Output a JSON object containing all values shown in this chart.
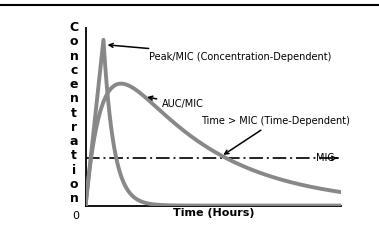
{
  "xlabel": "Time (Hours)",
  "ylabel_letters": [
    "C",
    "o",
    "n",
    "c",
    "e",
    "n",
    "t",
    "r",
    "a",
    "t",
    "i",
    "o",
    "n"
  ],
  "background_color": "#ffffff",
  "mic_level": 0.28,
  "curve_color": "#888888",
  "mic_color": "#222222",
  "annotation_peak": "Peak/MIC (Concentration-Dependent)",
  "annotation_auc": "AUC/MIC",
  "annotation_time": "Time > MIC (Time-Dependent)",
  "annotation_mic": "MIC",
  "xlim": [
    0,
    10
  ],
  "ylim": [
    0,
    1.05
  ],
  "curve_lw": 2.8
}
